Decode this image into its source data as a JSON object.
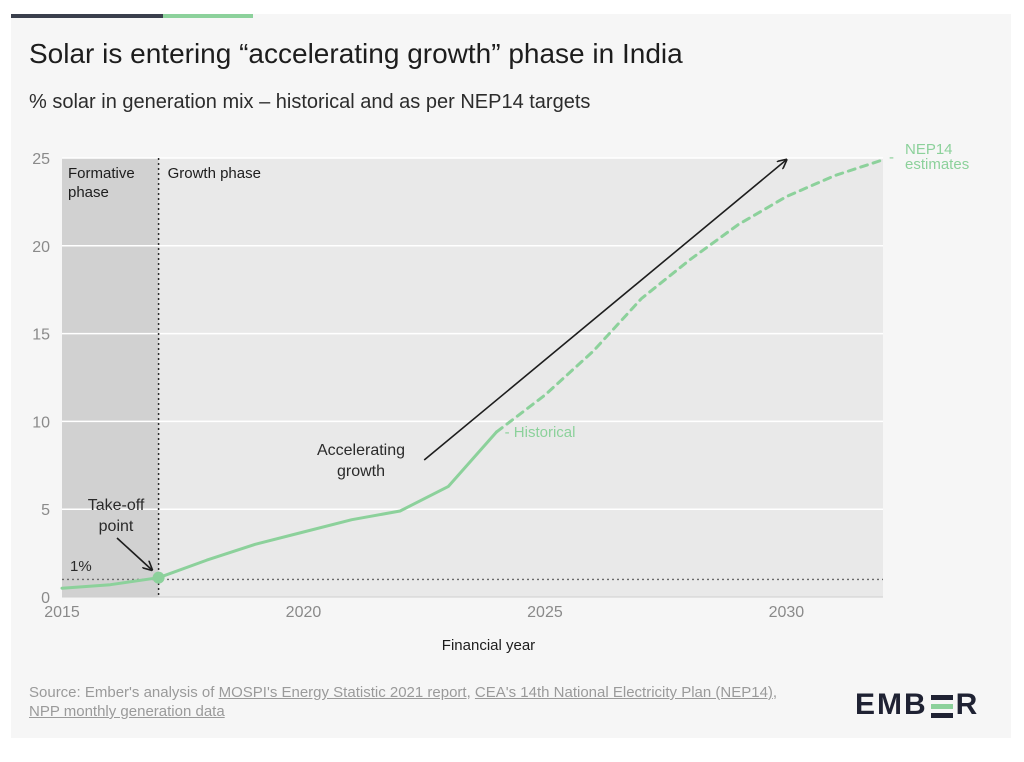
{
  "title": "Solar is entering “accelerating growth” phase in India",
  "subtitle": "% solar in generation mix – historical and as per NEP14 targets",
  "chart_data": {
    "type": "line",
    "x_label": "Financial year",
    "y_label": "",
    "xlim": [
      2015,
      2032
    ],
    "ylim": [
      0,
      25
    ],
    "x_ticks": [
      2015,
      2020,
      2025,
      2030
    ],
    "y_ticks": [
      0,
      5,
      10,
      15,
      20,
      25
    ],
    "grid": true,
    "series": [
      {
        "name": "Historical",
        "style": "solid",
        "color": "#8cd19b",
        "x": [
          2015,
          2016,
          2017,
          2018,
          2019,
          2020,
          2021,
          2022,
          2023,
          2024
        ],
        "y": [
          0.5,
          0.7,
          1.1,
          2.1,
          3.0,
          3.7,
          4.4,
          4.9,
          6.3,
          9.4
        ]
      },
      {
        "name": "NEP14 estimates",
        "style": "dashed",
        "color": "#8cd19b",
        "x": [
          2024,
          2025,
          2026,
          2027,
          2028,
          2029,
          2030,
          2031,
          2032
        ],
        "y": [
          9.4,
          11.5,
          14.0,
          17.0,
          19.2,
          21.2,
          22.8,
          24.0,
          24.9
        ]
      }
    ],
    "phases": [
      {
        "label": "Formative phase",
        "from": 2015,
        "to": 2017
      },
      {
        "label": "Growth phase",
        "from": 2017,
        "to": 2032
      }
    ],
    "reference_line": {
      "label": "1%",
      "y": 1
    },
    "annotations": {
      "takeoff": "Take-off point",
      "takeoff_point": {
        "x": 2017,
        "y": 1.1
      },
      "accelerating": "Accelerating growth",
      "accelerating_arrow": {
        "x1": 2022.5,
        "y1": 7.8,
        "x2": 2030,
        "y2": 24.9
      }
    }
  },
  "source": {
    "prefix": "Source: Ember's analysis of ",
    "link1": "MOSPI's Energy Statistic 2021 report",
    "sep1": ", ",
    "link2": "CEA's 14th National Electricity Plan (NEP14)",
    "sep2": ", ",
    "link3": "NPP monthly generation data"
  },
  "logo": {
    "left": "EMB",
    "right": "R"
  },
  "colors": {
    "accent": "#8cd19b",
    "dark": "#1f2233",
    "phase_formative": "#d1d1d1",
    "plot_bg": "#e9e9e9"
  }
}
